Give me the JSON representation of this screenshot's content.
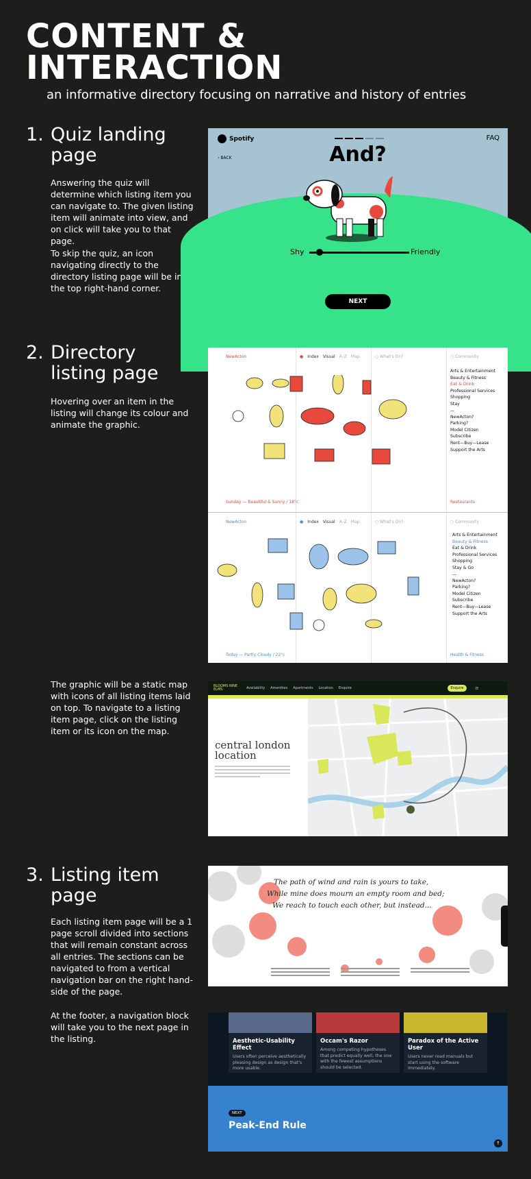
{
  "header": {
    "title_line1": "CONTENT &",
    "title_line2": "INTERACTION",
    "subtitle": "an informative directory focusing on narrative and history of entries"
  },
  "sections": {
    "quiz": {
      "number": "1.",
      "title_line1": "Quiz landing",
      "title_line2": "page",
      "para1": "Answering the quiz will determine which listing item you can navigate to. The given listing item will animate into view, and on click will take you to that page.",
      "para2": "To skip the quiz, an icon navigating directly to the directory listing page will be in the top right-hand corner."
    },
    "directory": {
      "number": "2.",
      "title_line1": "Directory",
      "title_line2": "listing page",
      "para1": "Hovering over an item in the listing will change its colour and animate the graphic.",
      "para2": "The graphic will be a static map with icons of all listing items laid on top. To navigate to a listing item page, click on the listing item or its icon on the map."
    },
    "listing": {
      "number": "3.",
      "title_line1": "Listing item",
      "title_line2": "page",
      "para1": "Each listing item page will be a 1 page scroll divided into sections that will remain constant across all entries. The sections can be navigated to from a vertical navigation bar on the right hand-side of the page.",
      "para2": "At the footer, a navigation block will take you to the next page in the listing."
    }
  },
  "quiz_mock": {
    "brand": "Spotify",
    "faq": "FAQ",
    "back": "BACK",
    "question": "And?",
    "left_label": "Shy",
    "right_label": "Friendly",
    "next": "NEXT",
    "slider_value": 0.1,
    "colors": {
      "sky": "#a6c3d2",
      "grass": "#36e38a",
      "dog_spot": "#e8493d"
    }
  },
  "directory_mock": {
    "top": {
      "brand": "NewActon",
      "tabs": [
        "Index",
        "Visual",
        "A–Z",
        "Map"
      ],
      "whats_on": "What's On?",
      "community": "Community",
      "categories": [
        "Arts & Entertainment",
        "Beauty & Fitness",
        "Eat & Drink",
        "Professional Services",
        "Shopping",
        "Stay"
      ],
      "active_category": "Eat & Drink",
      "links": [
        "NewActon?",
        "Parking?",
        "Model Citizen",
        "Subscribe",
        "Rent—Buy—Lease",
        "Support the Arts"
      ],
      "footer_left": "Sunday — Beautiful & Sunny / 18°c",
      "footer_right": "Restaurants",
      "accent": "#e8493d"
    },
    "bottom": {
      "brand": "NewActon",
      "tabs": [
        "Index",
        "Visual",
        "A–Z",
        "Map"
      ],
      "whats_on": "What's On?",
      "community": "Community",
      "categories": [
        "Arts & Entertainment",
        "Beauty & Fitness",
        "Eat & Drink",
        "Professional Services",
        "Shopping",
        "Stay & Go"
      ],
      "active_category": "Beauty & Fitness",
      "links": [
        "NewActon?",
        "Parking?",
        "Model Citizen",
        "Subscribe",
        "Rent—Buy—Lease",
        "Support the Arts"
      ],
      "footer_left": "Today — Partly Cloudy / 22°c",
      "footer_right": "Health & Fitness",
      "accent": "#4a90d9"
    }
  },
  "map_mock": {
    "logo": "BLOOMS NINE ELMS",
    "nav": [
      "Availability",
      "Amenities",
      "Apartments",
      "Location",
      "Enquire"
    ],
    "heading_line1": "central london",
    "heading_line2": "location",
    "cta": "Enquire"
  },
  "poem_mock": {
    "line1": "The path of wind and rain is yours to take,",
    "line2": "While mine does mourn an empty room and bed;",
    "line3": "We reach to touch each other, but instead..."
  },
  "laws_mock": {
    "cards": [
      {
        "title": "Aesthetic-Usability Effect",
        "text": "Users often perceive aesthetically pleasing design as design that's more usable.",
        "color": "#5a6a8a"
      },
      {
        "title": "Occam's Razor",
        "text": "Among competing hypotheses that predict equally well, the one with the fewest assumptions should be selected.",
        "color": "#b83a3a"
      },
      {
        "title": "Paradox of the Active User",
        "text": "Users never read manuals but start using the software immediately.",
        "color": "#c9b82e"
      }
    ],
    "next_badge": "NEXT",
    "next_title": "Peak-End Rule",
    "next_color": "#3682cf"
  }
}
